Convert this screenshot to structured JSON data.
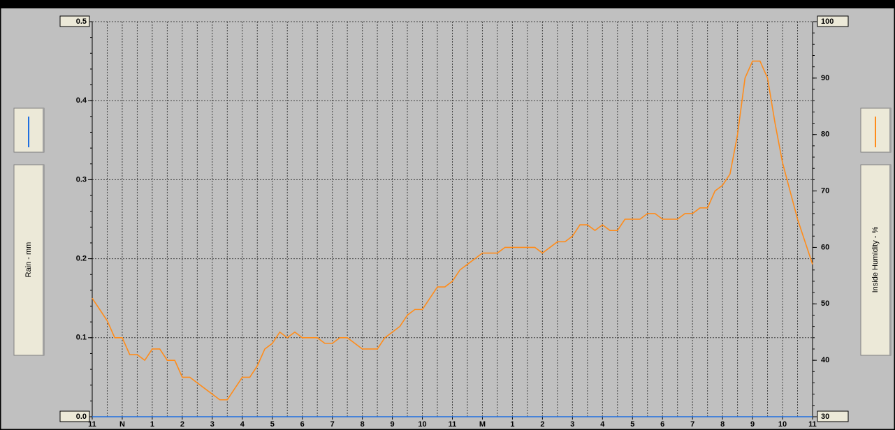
{
  "chart_data": {
    "type": "line",
    "y_label": "Rain - mm",
    "y2_label": "Inside Humidity - %",
    "xlim": [
      0,
      24
    ],
    "xticks": [
      {
        "value": 0,
        "label": "11"
      },
      {
        "value": 1,
        "label": "N"
      },
      {
        "value": 2,
        "label": "1"
      },
      {
        "value": 3,
        "label": "2"
      },
      {
        "value": 4,
        "label": "3"
      },
      {
        "value": 5,
        "label": "4"
      },
      {
        "value": 6,
        "label": "5"
      },
      {
        "value": 7,
        "label": "6"
      },
      {
        "value": 8,
        "label": "7"
      },
      {
        "value": 9,
        "label": "8"
      },
      {
        "value": 10,
        "label": "9"
      },
      {
        "value": 11,
        "label": "10"
      },
      {
        "value": 12,
        "label": "11"
      },
      {
        "value": 13,
        "label": "M"
      },
      {
        "value": 14,
        "label": "1"
      },
      {
        "value": 15,
        "label": "2"
      },
      {
        "value": 16,
        "label": "3"
      },
      {
        "value": 17,
        "label": "4"
      },
      {
        "value": 18,
        "label": "5"
      },
      {
        "value": 19,
        "label": "6"
      },
      {
        "value": 20,
        "label": "7"
      },
      {
        "value": 21,
        "label": "8"
      },
      {
        "value": 22,
        "label": "9"
      },
      {
        "value": 23,
        "label": "10"
      },
      {
        "value": 24,
        "label": "11"
      }
    ],
    "ylim": [
      0,
      0.5
    ],
    "yticks": [
      {
        "value": 0,
        "label": "0.0"
      },
      0.1,
      0.2,
      0.3,
      0.4,
      0.5
    ],
    "y2lim": [
      30,
      100
    ],
    "y2ticks": [
      30,
      40,
      50,
      60,
      70,
      80,
      90,
      100
    ],
    "grid": true,
    "x": [
      0,
      0.25,
      0.5,
      0.75,
      1,
      1.25,
      1.5,
      1.75,
      2,
      2.25,
      2.5,
      2.75,
      3,
      3.25,
      3.5,
      3.75,
      4,
      4.25,
      4.5,
      4.75,
      5,
      5.25,
      5.5,
      5.75,
      6,
      6.25,
      6.5,
      6.75,
      7,
      7.25,
      7.5,
      7.75,
      8,
      8.25,
      8.5,
      8.75,
      9,
      9.25,
      9.5,
      9.75,
      10,
      10.25,
      10.5,
      10.75,
      11,
      11.25,
      11.5,
      11.75,
      12,
      12.25,
      12.5,
      12.75,
      13,
      13.25,
      13.5,
      13.75,
      14,
      14.25,
      14.5,
      14.75,
      15,
      15.25,
      15.5,
      15.75,
      16,
      16.25,
      16.5,
      16.75,
      17,
      17.25,
      17.5,
      17.75,
      18,
      18.25,
      18.5,
      18.75,
      19,
      19.25,
      19.5,
      19.75,
      20,
      20.25,
      20.5,
      20.75,
      21,
      21.25,
      21.5,
      21.75,
      22,
      22.25,
      22.5,
      22.75,
      23,
      23.25,
      23.5,
      23.75,
      24
    ],
    "series": [
      {
        "name": "Rain - mm",
        "color": "#1f6fe0",
        "axis": "y",
        "values": [
          0,
          0,
          0,
          0,
          0,
          0,
          0,
          0,
          0,
          0,
          0,
          0,
          0,
          0,
          0,
          0,
          0,
          0,
          0,
          0,
          0,
          0,
          0,
          0,
          0,
          0,
          0,
          0,
          0,
          0,
          0,
          0,
          0,
          0,
          0,
          0,
          0,
          0,
          0,
          0,
          0,
          0,
          0,
          0,
          0,
          0,
          0,
          0,
          0,
          0,
          0,
          0,
          0,
          0,
          0,
          0,
          0,
          0,
          0,
          0,
          0,
          0,
          0,
          0,
          0,
          0,
          0,
          0,
          0,
          0,
          0,
          0,
          0,
          0,
          0,
          0,
          0,
          0,
          0,
          0,
          0,
          0,
          0,
          0,
          0,
          0,
          0,
          0,
          0,
          0,
          0,
          0,
          0,
          0,
          0,
          0,
          0
        ]
      },
      {
        "name": "Inside Humidity - %",
        "color": "#ff8c1a",
        "axis": "y2",
        "values": [
          51,
          49,
          47,
          44,
          44,
          41,
          41,
          40,
          42,
          42,
          40,
          40,
          37,
          37,
          36,
          35,
          34,
          33,
          33,
          35,
          37,
          37,
          39,
          42,
          43,
          45,
          44,
          45,
          44,
          44,
          44,
          43,
          43,
          44,
          44,
          43,
          42,
          42,
          42,
          44,
          45,
          46,
          48,
          49,
          49,
          51,
          53,
          53,
          54,
          56,
          57,
          58,
          59,
          59,
          59,
          60,
          60,
          60,
          60,
          60,
          59,
          60,
          61,
          61,
          62,
          64,
          64,
          63,
          64,
          63,
          63,
          65,
          65,
          65,
          66,
          66,
          65,
          65,
          65,
          66,
          66,
          67,
          67,
          70,
          71,
          73,
          80,
          90,
          93,
          93,
          90,
          82,
          75,
          70,
          65,
          61,
          57
        ]
      }
    ]
  }
}
